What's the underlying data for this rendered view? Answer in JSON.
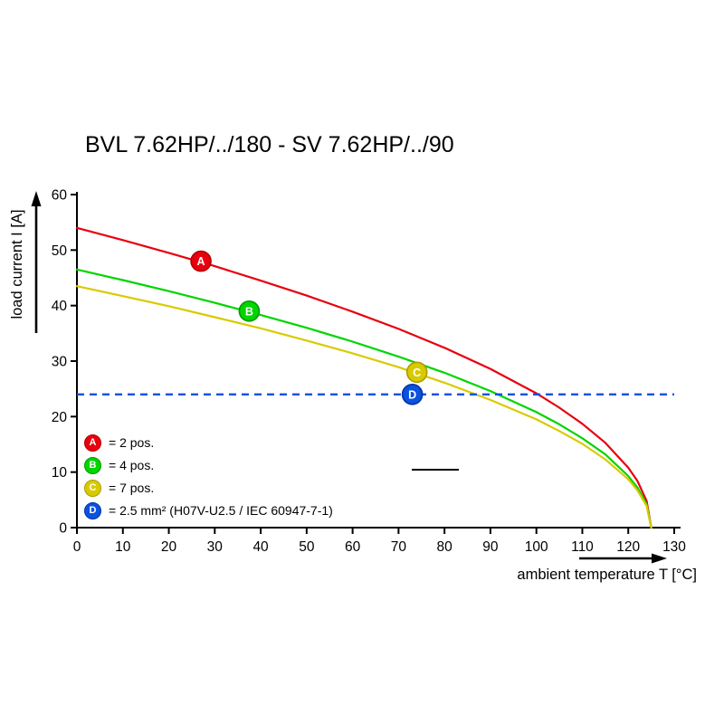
{
  "title": "BVL 7.62HP/../180 - SV 7.62HP/../90",
  "chart_data": {
    "type": "line",
    "title": "BVL 7.62HP/../180 - SV 7.62HP/../90",
    "xlabel": "ambient temperature T [°C]",
    "ylabel": "load current I [A]",
    "xlim": [
      0,
      130
    ],
    "ylim": [
      0,
      60
    ],
    "xticks": [
      0,
      10,
      20,
      30,
      40,
      50,
      60,
      70,
      80,
      90,
      100,
      110,
      120,
      130
    ],
    "yticks": [
      0,
      10,
      20,
      30,
      40,
      50,
      60
    ],
    "grid": false,
    "legend_position": "lower-left-inside",
    "series": [
      {
        "name": "A",
        "label": "2 pos.",
        "color": "#e8000e",
        "ring": "#b30000",
        "marker": {
          "x": 27,
          "y": 48,
          "letter": "A"
        },
        "x": [
          0,
          10,
          20,
          30,
          40,
          50,
          60,
          70,
          80,
          90,
          100,
          105,
          110,
          115,
          120,
          122,
          124,
          125
        ],
        "y": [
          54.0,
          51.8,
          49.5,
          47.1,
          44.5,
          41.8,
          38.9,
          35.8,
          32.4,
          28.6,
          24.2,
          21.6,
          18.7,
          15.3,
          10.8,
          8.4,
          4.8,
          0
        ]
      },
      {
        "name": "B",
        "label": "4 pos.",
        "color": "#00d500",
        "ring": "#009a00",
        "marker": {
          "x": 37.5,
          "y": 39,
          "letter": "B"
        },
        "x": [
          0,
          10,
          20,
          30,
          40,
          50,
          60,
          70,
          80,
          90,
          100,
          105,
          110,
          115,
          120,
          122,
          124,
          125
        ],
        "y": [
          46.5,
          44.6,
          42.6,
          40.5,
          38.3,
          36.0,
          33.5,
          30.8,
          27.9,
          24.6,
          20.8,
          18.6,
          16.1,
          13.2,
          9.3,
          7.2,
          4.2,
          0
        ]
      },
      {
        "name": "C",
        "label": "7 pos.",
        "color": "#d9ca00",
        "ring": "#a89c00",
        "marker": {
          "x": 74,
          "y": 28,
          "letter": "C"
        },
        "x": [
          0,
          10,
          20,
          30,
          40,
          50,
          60,
          70,
          80,
          90,
          100,
          105,
          110,
          115,
          120,
          122,
          124,
          125
        ],
        "y": [
          43.5,
          41.7,
          39.9,
          37.9,
          35.9,
          33.7,
          31.4,
          28.9,
          26.1,
          23.0,
          19.5,
          17.4,
          15.1,
          12.3,
          8.7,
          6.7,
          3.9,
          0
        ]
      },
      {
        "name": "D",
        "label": "2.5 mm² (H07V-U2.5 / IEC 60947-7-1)",
        "color": "#0a52e0",
        "ring": "#0033a0",
        "style": "dashed",
        "y_const": 24,
        "marker": {
          "x": 73,
          "y": 24,
          "letter": "D"
        }
      }
    ],
    "legend": [
      {
        "letter": "A",
        "color": "#e8000e",
        "ring": "#b30000",
        "text": "= 2 pos."
      },
      {
        "letter": "B",
        "color": "#00d500",
        "ring": "#009a00",
        "text": "= 4 pos."
      },
      {
        "letter": "C",
        "color": "#d9ca00",
        "ring": "#a89c00",
        "text": "= 7 pos."
      },
      {
        "letter": "D",
        "color": "#0a52e0",
        "ring": "#0033a0",
        "text": "= 2.5 mm² (H07V-U2.5 / IEC 60947-7-1)"
      }
    ]
  }
}
